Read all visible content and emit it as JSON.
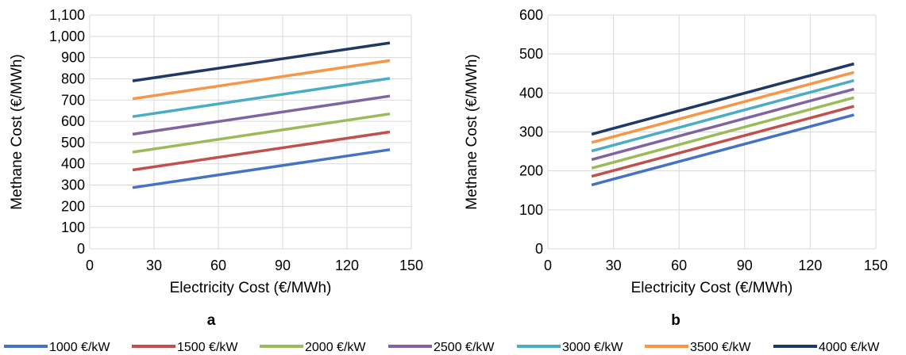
{
  "chart_data": [
    {
      "type": "line",
      "panel_label": "a",
      "xlabel": "Electricity Cost (€/MWh)",
      "ylabel": "Methane Cost (€/MWh)",
      "xlim": [
        0,
        150
      ],
      "ylim": [
        0,
        1100
      ],
      "xticks": [
        0,
        30,
        60,
        90,
        120,
        150
      ],
      "yticks": [
        0,
        100,
        200,
        300,
        400,
        500,
        600,
        700,
        800,
        900,
        1000,
        1100
      ],
      "ytick_labels": [
        "0",
        "100",
        "200",
        "300",
        "400",
        "500",
        "600",
        "700",
        "800",
        "900",
        "1,000",
        "1,100"
      ],
      "grid": true,
      "x": [
        20,
        140
      ],
      "series": [
        {
          "name": "1000 €/kW",
          "values": [
            288,
            467
          ]
        },
        {
          "name": "1500 €/kW",
          "values": [
            371,
            550
          ]
        },
        {
          "name": "2000 €/kW",
          "values": [
            455,
            635
          ]
        },
        {
          "name": "2500 €/kW",
          "values": [
            539,
            719
          ]
        },
        {
          "name": "3000 €/kW",
          "values": [
            622,
            802
          ]
        },
        {
          "name": "3500 €/kW",
          "values": [
            706,
            886
          ]
        },
        {
          "name": "4000 €/kW",
          "values": [
            790,
            969
          ]
        }
      ]
    },
    {
      "type": "line",
      "panel_label": "b",
      "xlabel": "Electricity Cost (€/MWh)",
      "ylabel": "Methane Cost (€/MWh)",
      "xlim": [
        0,
        150
      ],
      "ylim": [
        0,
        600
      ],
      "xticks": [
        0,
        30,
        60,
        90,
        120,
        150
      ],
      "yticks": [
        0,
        100,
        200,
        300,
        400,
        500,
        600
      ],
      "ytick_labels": [
        "0",
        "100",
        "200",
        "300",
        "400",
        "500",
        "600"
      ],
      "grid": true,
      "x": [
        20,
        140
      ],
      "series": [
        {
          "name": "1000 €/kW",
          "values": [
            164,
            344
          ]
        },
        {
          "name": "1500 €/kW",
          "values": [
            186,
            366
          ]
        },
        {
          "name": "2000 €/kW",
          "values": [
            207,
            388
          ]
        },
        {
          "name": "2500 €/kW",
          "values": [
            229,
            410
          ]
        },
        {
          "name": "3000 €/kW",
          "values": [
            251,
            432
          ]
        },
        {
          "name": "3500 €/kW",
          "values": [
            273,
            453
          ]
        },
        {
          "name": "4000 €/kW",
          "values": [
            294,
            475
          ]
        }
      ]
    }
  ],
  "legend": {
    "placement": "bottom",
    "items": [
      {
        "label": "1000 €/kW",
        "color": "#4472c4"
      },
      {
        "label": "1500 €/kW",
        "color": "#c0504d"
      },
      {
        "label": "2000 €/kW",
        "color": "#9bbb59"
      },
      {
        "label": "2500 €/kW",
        "color": "#8064a2"
      },
      {
        "label": "3000 €/kW",
        "color": "#4bacc6"
      },
      {
        "label": "3500 €/kW",
        "color": "#f79646"
      },
      {
        "label": "4000 €/kW",
        "color": "#1f3864"
      }
    ]
  }
}
